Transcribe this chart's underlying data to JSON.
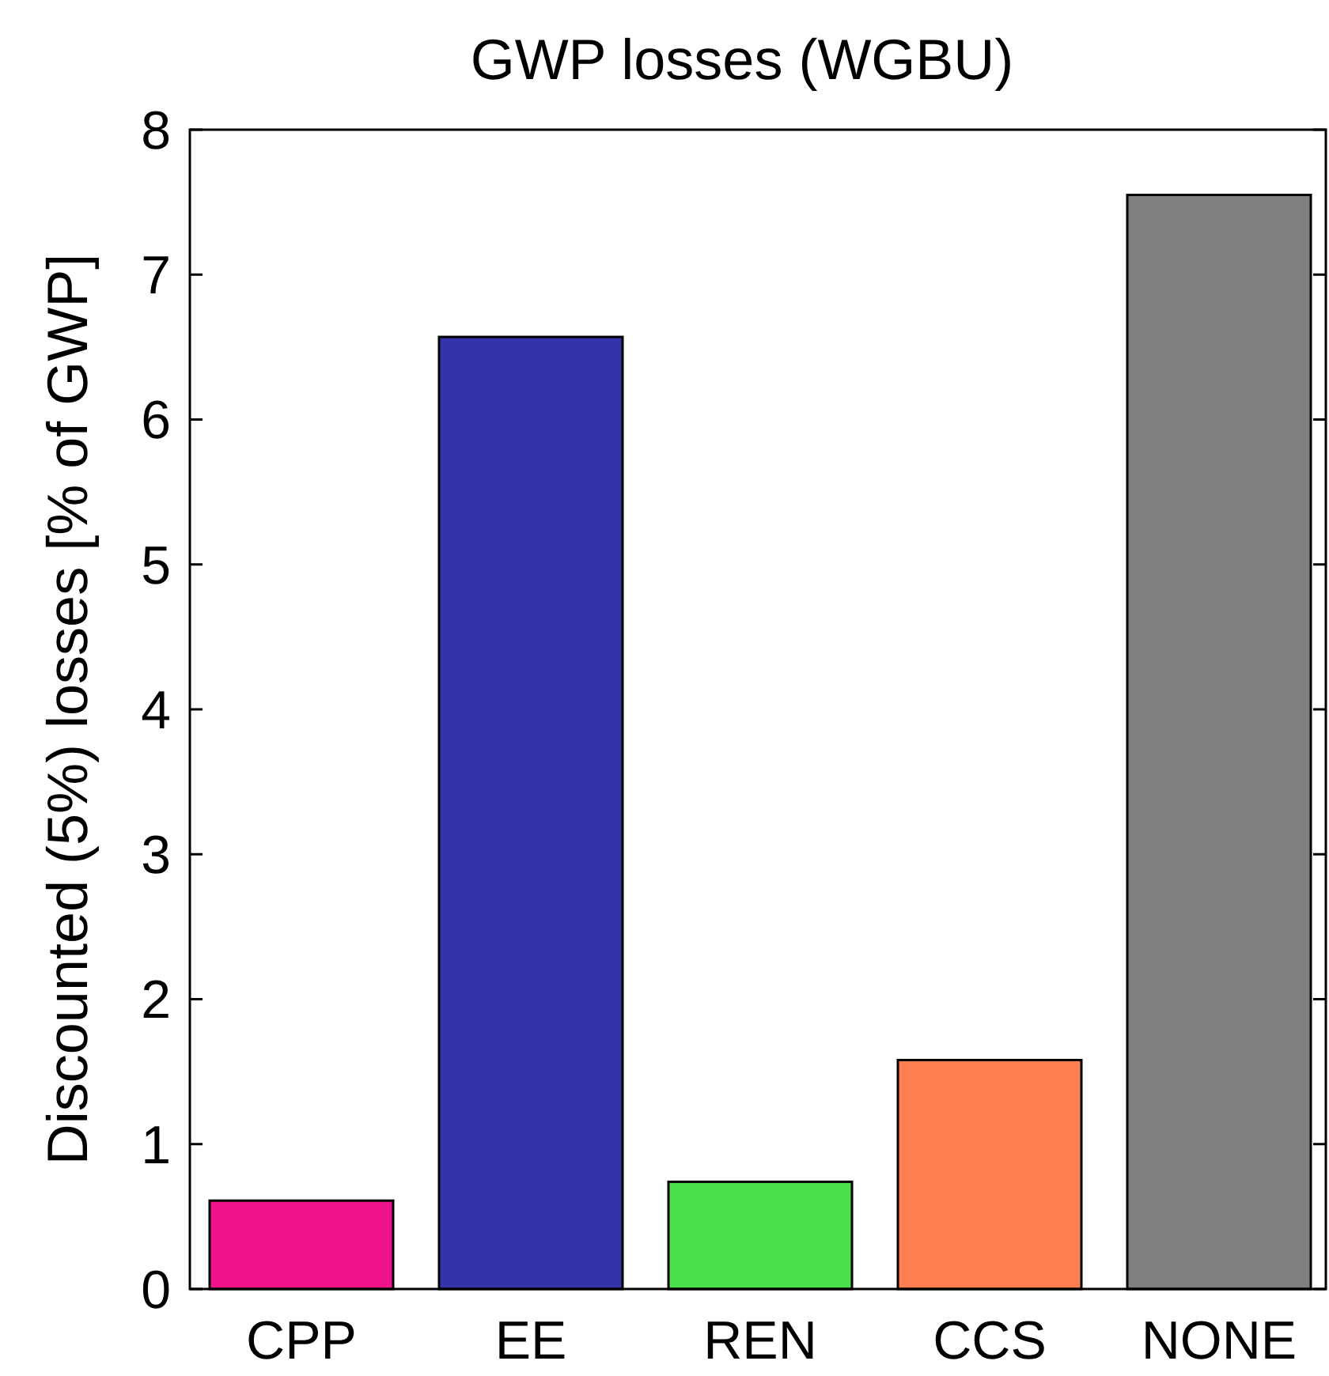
{
  "chart_data": {
    "type": "bar",
    "title": "GWP losses (WGBU)",
    "ylabel": "Discounted (5%) losses [% of GWP]",
    "categories": [
      "CPP",
      "EE",
      "REN",
      "CCS",
      "NONE"
    ],
    "values": [
      0.61,
      6.57,
      0.74,
      1.58,
      7.55
    ],
    "colors": [
      "#f0148c",
      "#3333aa",
      "#4ce04c",
      "#ff7f50",
      "#808080"
    ],
    "ylim": [
      0,
      8
    ],
    "yticks": [
      0,
      1,
      2,
      3,
      4,
      5,
      6,
      7,
      8
    ],
    "grid": false
  }
}
